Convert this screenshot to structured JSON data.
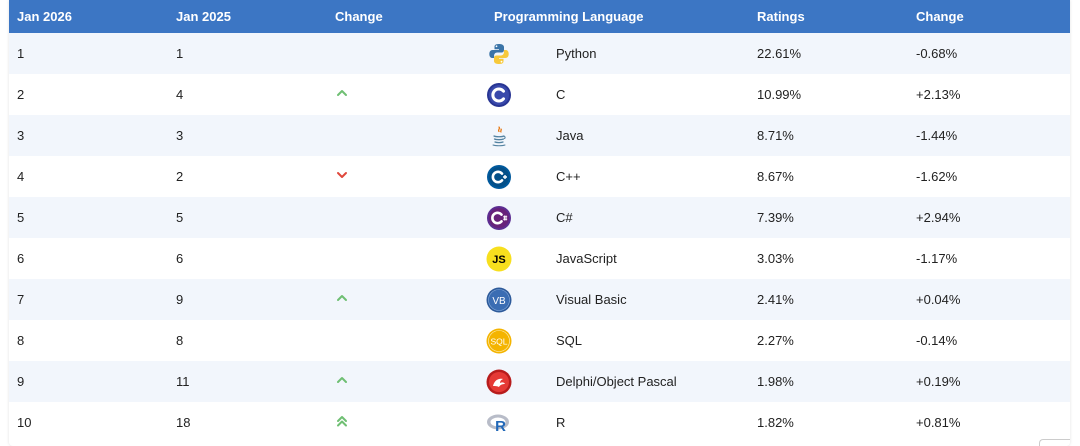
{
  "header": {
    "col_this_year": "Jan 2026",
    "col_last_year": "Jan 2025",
    "col_change": "Change",
    "col_language": "Programming Language",
    "col_ratings": "Ratings",
    "col_change_rating": "Change"
  },
  "rows": [
    {
      "rank": "1",
      "prev": "1",
      "trend": "none",
      "logo": "python-icon",
      "language": "Python",
      "rating": "22.61%",
      "change": "-0.68%"
    },
    {
      "rank": "2",
      "prev": "4",
      "trend": "up",
      "logo": "c-icon",
      "language": "C",
      "rating": "10.99%",
      "change": "+2.13%"
    },
    {
      "rank": "3",
      "prev": "3",
      "trend": "none",
      "logo": "java-icon",
      "language": "Java",
      "rating": "8.71%",
      "change": "-1.44%"
    },
    {
      "rank": "4",
      "prev": "2",
      "trend": "down",
      "logo": "cpp-icon",
      "language": "C++",
      "rating": "8.67%",
      "change": "-1.62%"
    },
    {
      "rank": "5",
      "prev": "5",
      "trend": "none",
      "logo": "csharp-icon",
      "language": "C#",
      "rating": "7.39%",
      "change": "+2.94%"
    },
    {
      "rank": "6",
      "prev": "6",
      "trend": "none",
      "logo": "javascript-icon",
      "language": "JavaScript",
      "rating": "3.03%",
      "change": "-1.17%"
    },
    {
      "rank": "7",
      "prev": "9",
      "trend": "up",
      "logo": "visual-basic-icon",
      "language": "Visual Basic",
      "rating": "2.41%",
      "change": "+0.04%"
    },
    {
      "rank": "8",
      "prev": "8",
      "trend": "none",
      "logo": "sql-icon",
      "language": "SQL",
      "rating": "2.27%",
      "change": "-0.14%"
    },
    {
      "rank": "9",
      "prev": "11",
      "trend": "up",
      "logo": "delphi-icon",
      "language": "Delphi/Object Pascal",
      "rating": "1.98%",
      "change": "+0.19%"
    },
    {
      "rank": "10",
      "prev": "18",
      "trend": "double-up",
      "logo": "r-icon",
      "language": "R",
      "rating": "1.82%",
      "change": "+0.81%"
    }
  ],
  "colors": {
    "header_bg": "#3c76c4",
    "row_alt_bg": "#f2f6fc",
    "trend_up": "#6fbf73",
    "trend_down": "#e0483c"
  },
  "logo_text": {
    "javascript-icon": "JS",
    "visual-basic-icon": "VB",
    "sql-icon": "SQL",
    "r-icon": "R"
  }
}
